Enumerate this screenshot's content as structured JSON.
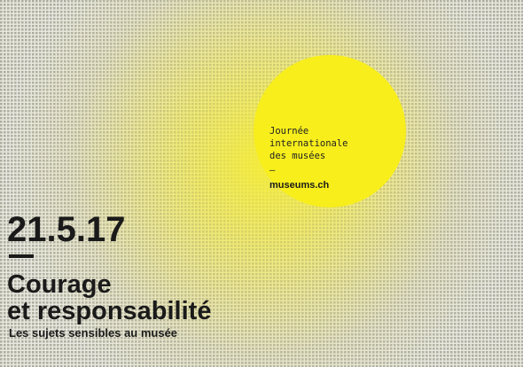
{
  "event": {
    "name_lines": [
      "Journée",
      "internationale",
      "des musées"
    ],
    "separator": "—",
    "website": "museums.ch"
  },
  "date": "21.5.17",
  "theme": {
    "title_lines": [
      "Courage",
      "et responsabilité"
    ],
    "subtitle": "Les sujets sensibles au musée"
  }
}
